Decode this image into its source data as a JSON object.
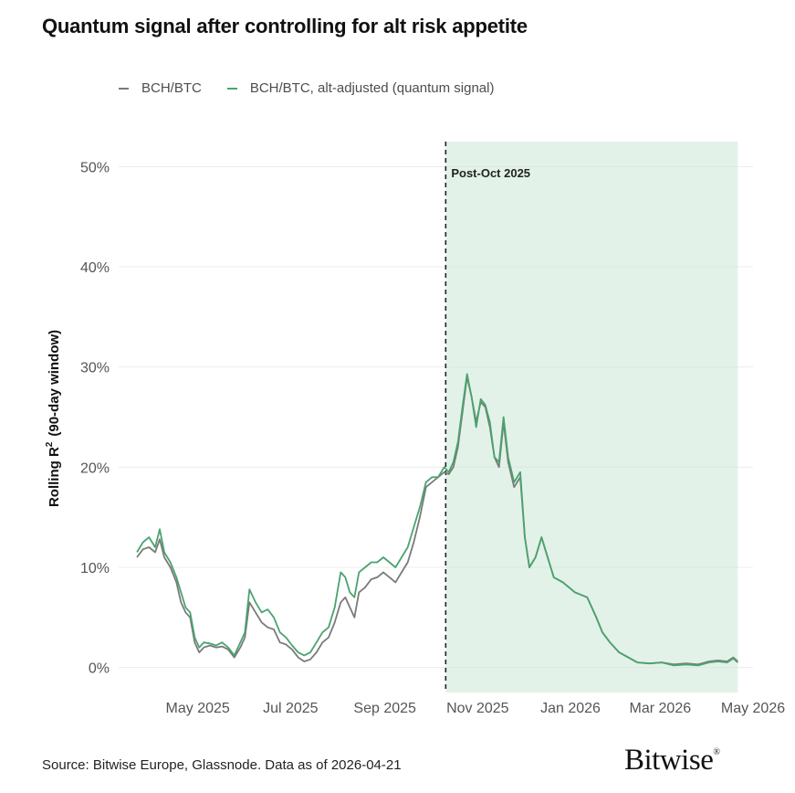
{
  "title": "Quantum signal after controlling for alt risk appetite",
  "source": "Source: Bitwise Europe, Glassnode. Data as of 2026-04-21",
  "logo": "Bitwise",
  "colors": {
    "raw": "#7a7a7a",
    "adjusted": "#4aa36e",
    "shade": "#e3f2e8",
    "grid": "#ececec"
  },
  "chart_data": {
    "type": "line",
    "title": "Quantum signal after controlling for alt risk appetite",
    "xlabel": "",
    "ylabel": "Rolling R² (90-day window)",
    "ylabel_main": "Rolling R",
    "ylabel_sup": "2",
    "ylabel_rest": "(90-day window)",
    "ylim": [
      -2.5,
      52.5
    ],
    "yticks": [
      0,
      10,
      20,
      30,
      40,
      50
    ],
    "ytick_labels": [
      "0%",
      "10%",
      "20%",
      "30%",
      "40%",
      "50%"
    ],
    "xlim": [
      "2025-03-10",
      "2026-05-01"
    ],
    "xticks": [
      "2025-05-01",
      "2025-07-01",
      "2025-09-01",
      "2025-11-01",
      "2026-01-01",
      "2026-03-01",
      "2026-05-01"
    ],
    "xtick_labels": [
      "May 2025",
      "Jul 2025",
      "Sep 2025",
      "Nov 2025",
      "Jan 2026",
      "Mar 2026",
      "May 2026"
    ],
    "grid": true,
    "legend_position": "top-left",
    "annotation": {
      "x": "2025-10-11",
      "label": "Post-Oct 2025",
      "shade_start": "2025-10-11",
      "shade_end": "2026-04-21"
    },
    "series": [
      {
        "name": "BCH/BTC",
        "color": "#7a7a7a",
        "points": [
          [
            "2025-03-22",
            11.0
          ],
          [
            "2025-03-26",
            11.8
          ],
          [
            "2025-03-30",
            12.0
          ],
          [
            "2025-04-03",
            11.5
          ],
          [
            "2025-04-06",
            12.8
          ],
          [
            "2025-04-09",
            11.0
          ],
          [
            "2025-04-13",
            10.0
          ],
          [
            "2025-04-17",
            8.5
          ],
          [
            "2025-04-20",
            6.5
          ],
          [
            "2025-04-23",
            5.5
          ],
          [
            "2025-04-26",
            5.0
          ],
          [
            "2025-04-29",
            2.5
          ],
          [
            "2025-05-02",
            1.5
          ],
          [
            "2025-05-05",
            2.0
          ],
          [
            "2025-05-09",
            2.2
          ],
          [
            "2025-05-13",
            2.0
          ],
          [
            "2025-05-17",
            2.1
          ],
          [
            "2025-05-21",
            1.8
          ],
          [
            "2025-05-25",
            1.0
          ],
          [
            "2025-05-29",
            2.0
          ],
          [
            "2025-06-01",
            3.0
          ],
          [
            "2025-06-04",
            6.5
          ],
          [
            "2025-06-08",
            5.5
          ],
          [
            "2025-06-12",
            4.5
          ],
          [
            "2025-06-16",
            4.0
          ],
          [
            "2025-06-20",
            3.8
          ],
          [
            "2025-06-24",
            2.5
          ],
          [
            "2025-06-28",
            2.3
          ],
          [
            "2025-07-02",
            1.8
          ],
          [
            "2025-07-06",
            1.0
          ],
          [
            "2025-07-10",
            0.6
          ],
          [
            "2025-07-14",
            0.8
          ],
          [
            "2025-07-18",
            1.5
          ],
          [
            "2025-07-22",
            2.5
          ],
          [
            "2025-07-26",
            3.0
          ],
          [
            "2025-07-30",
            4.5
          ],
          [
            "2025-08-03",
            6.5
          ],
          [
            "2025-08-06",
            7.0
          ],
          [
            "2025-08-09",
            6.0
          ],
          [
            "2025-08-12",
            5.0
          ],
          [
            "2025-08-15",
            7.5
          ],
          [
            "2025-08-19",
            8.0
          ],
          [
            "2025-08-23",
            8.8
          ],
          [
            "2025-08-27",
            9.0
          ],
          [
            "2025-08-31",
            9.5
          ],
          [
            "2025-09-04",
            9.0
          ],
          [
            "2025-09-08",
            8.5
          ],
          [
            "2025-09-12",
            9.5
          ],
          [
            "2025-09-16",
            10.5
          ],
          [
            "2025-09-20",
            12.5
          ],
          [
            "2025-09-24",
            15.0
          ],
          [
            "2025-09-28",
            18.0
          ],
          [
            "2025-10-02",
            18.5
          ],
          [
            "2025-10-06",
            19.0
          ],
          [
            "2025-10-10",
            19.5
          ],
          [
            "2025-10-13",
            19.3
          ],
          [
            "2025-10-16",
            20.0
          ],
          [
            "2025-10-19",
            22.0
          ],
          [
            "2025-10-22",
            25.5
          ],
          [
            "2025-10-25",
            29.0
          ],
          [
            "2025-10-28",
            27.0
          ],
          [
            "2025-10-31",
            24.5
          ],
          [
            "2025-11-03",
            26.5
          ],
          [
            "2025-11-06",
            26.0
          ],
          [
            "2025-11-09",
            24.0
          ],
          [
            "2025-11-12",
            21.0
          ],
          [
            "2025-11-15",
            20.0
          ],
          [
            "2025-11-18",
            24.5
          ],
          [
            "2025-11-21",
            20.5
          ],
          [
            "2025-11-25",
            18.0
          ],
          [
            "2025-11-29",
            19.0
          ],
          [
            "2025-12-02",
            13.0
          ],
          [
            "2025-12-05",
            10.0
          ],
          [
            "2025-12-09",
            11.0
          ],
          [
            "2025-12-13",
            13.0
          ],
          [
            "2025-12-17",
            11.0
          ],
          [
            "2025-12-21",
            9.0
          ],
          [
            "2025-12-27",
            8.5
          ],
          [
            "2026-01-04",
            7.5
          ],
          [
            "2026-01-12",
            7.0
          ],
          [
            "2026-01-18",
            5.0
          ],
          [
            "2026-01-22",
            3.5
          ],
          [
            "2026-01-27",
            2.5
          ],
          [
            "2026-02-02",
            1.5
          ],
          [
            "2026-02-08",
            1.0
          ],
          [
            "2026-02-14",
            0.5
          ],
          [
            "2026-02-22",
            0.4
          ],
          [
            "2026-03-02",
            0.5
          ],
          [
            "2026-03-10",
            0.3
          ],
          [
            "2026-03-18",
            0.4
          ],
          [
            "2026-03-26",
            0.3
          ],
          [
            "2026-04-02",
            0.6
          ],
          [
            "2026-04-08",
            0.7
          ],
          [
            "2026-04-14",
            0.6
          ],
          [
            "2026-04-18",
            1.0
          ],
          [
            "2026-04-21",
            0.6
          ]
        ]
      },
      {
        "name": "BCH/BTC, alt-adjusted (quantum signal)",
        "color": "#4aa36e",
        "points": [
          [
            "2025-03-22",
            11.5
          ],
          [
            "2025-03-26",
            12.5
          ],
          [
            "2025-03-30",
            13.0
          ],
          [
            "2025-04-03",
            12.0
          ],
          [
            "2025-04-06",
            13.8
          ],
          [
            "2025-04-09",
            11.5
          ],
          [
            "2025-04-13",
            10.5
          ],
          [
            "2025-04-17",
            9.0
          ],
          [
            "2025-04-20",
            7.5
          ],
          [
            "2025-04-23",
            6.0
          ],
          [
            "2025-04-26",
            5.5
          ],
          [
            "2025-04-29",
            3.0
          ],
          [
            "2025-05-02",
            2.0
          ],
          [
            "2025-05-05",
            2.5
          ],
          [
            "2025-05-09",
            2.4
          ],
          [
            "2025-05-13",
            2.2
          ],
          [
            "2025-05-17",
            2.5
          ],
          [
            "2025-05-21",
            2.0
          ],
          [
            "2025-05-25",
            1.2
          ],
          [
            "2025-05-29",
            2.5
          ],
          [
            "2025-06-01",
            3.5
          ],
          [
            "2025-06-04",
            7.8
          ],
          [
            "2025-06-08",
            6.5
          ],
          [
            "2025-06-12",
            5.5
          ],
          [
            "2025-06-16",
            5.8
          ],
          [
            "2025-06-20",
            5.0
          ],
          [
            "2025-06-24",
            3.5
          ],
          [
            "2025-06-28",
            3.0
          ],
          [
            "2025-07-02",
            2.2
          ],
          [
            "2025-07-06",
            1.5
          ],
          [
            "2025-07-10",
            1.2
          ],
          [
            "2025-07-14",
            1.5
          ],
          [
            "2025-07-18",
            2.5
          ],
          [
            "2025-07-22",
            3.5
          ],
          [
            "2025-07-26",
            4.0
          ],
          [
            "2025-07-30",
            6.0
          ],
          [
            "2025-08-03",
            9.5
          ],
          [
            "2025-08-06",
            9.0
          ],
          [
            "2025-08-09",
            7.5
          ],
          [
            "2025-08-12",
            7.0
          ],
          [
            "2025-08-15",
            9.5
          ],
          [
            "2025-08-19",
            10.0
          ],
          [
            "2025-08-23",
            10.5
          ],
          [
            "2025-08-27",
            10.5
          ],
          [
            "2025-08-31",
            11.0
          ],
          [
            "2025-09-04",
            10.5
          ],
          [
            "2025-09-08",
            10.0
          ],
          [
            "2025-09-12",
            11.0
          ],
          [
            "2025-09-16",
            12.0
          ],
          [
            "2025-09-20",
            14.0
          ],
          [
            "2025-09-24",
            16.0
          ],
          [
            "2025-09-28",
            18.5
          ],
          [
            "2025-10-02",
            19.0
          ],
          [
            "2025-10-06",
            19.0
          ],
          [
            "2025-10-10",
            20.0
          ],
          [
            "2025-10-13",
            19.5
          ],
          [
            "2025-10-16",
            20.5
          ],
          [
            "2025-10-19",
            22.5
          ],
          [
            "2025-10-22",
            26.0
          ],
          [
            "2025-10-25",
            29.3
          ],
          [
            "2025-10-28",
            27.0
          ],
          [
            "2025-10-31",
            24.0
          ],
          [
            "2025-11-03",
            26.8
          ],
          [
            "2025-11-06",
            26.2
          ],
          [
            "2025-11-09",
            24.5
          ],
          [
            "2025-11-12",
            21.0
          ],
          [
            "2025-11-15",
            20.5
          ],
          [
            "2025-11-18",
            25.0
          ],
          [
            "2025-11-21",
            21.0
          ],
          [
            "2025-11-25",
            18.5
          ],
          [
            "2025-11-29",
            19.5
          ],
          [
            "2025-12-02",
            13.0
          ],
          [
            "2025-12-05",
            10.0
          ],
          [
            "2025-12-09",
            11.0
          ],
          [
            "2025-12-13",
            13.0
          ],
          [
            "2025-12-17",
            11.0
          ],
          [
            "2025-12-21",
            9.0
          ],
          [
            "2025-12-27",
            8.5
          ],
          [
            "2026-01-04",
            7.5
          ],
          [
            "2026-01-12",
            7.0
          ],
          [
            "2026-01-18",
            5.0
          ],
          [
            "2026-01-22",
            3.5
          ],
          [
            "2026-01-27",
            2.5
          ],
          [
            "2026-02-02",
            1.5
          ],
          [
            "2026-02-08",
            1.0
          ],
          [
            "2026-02-14",
            0.5
          ],
          [
            "2026-02-22",
            0.4
          ],
          [
            "2026-03-02",
            0.5
          ],
          [
            "2026-03-10",
            0.2
          ],
          [
            "2026-03-18",
            0.3
          ],
          [
            "2026-03-26",
            0.2
          ],
          [
            "2026-04-02",
            0.5
          ],
          [
            "2026-04-08",
            0.6
          ],
          [
            "2026-04-14",
            0.5
          ],
          [
            "2026-04-18",
            0.9
          ],
          [
            "2026-04-21",
            0.5
          ]
        ]
      }
    ]
  }
}
